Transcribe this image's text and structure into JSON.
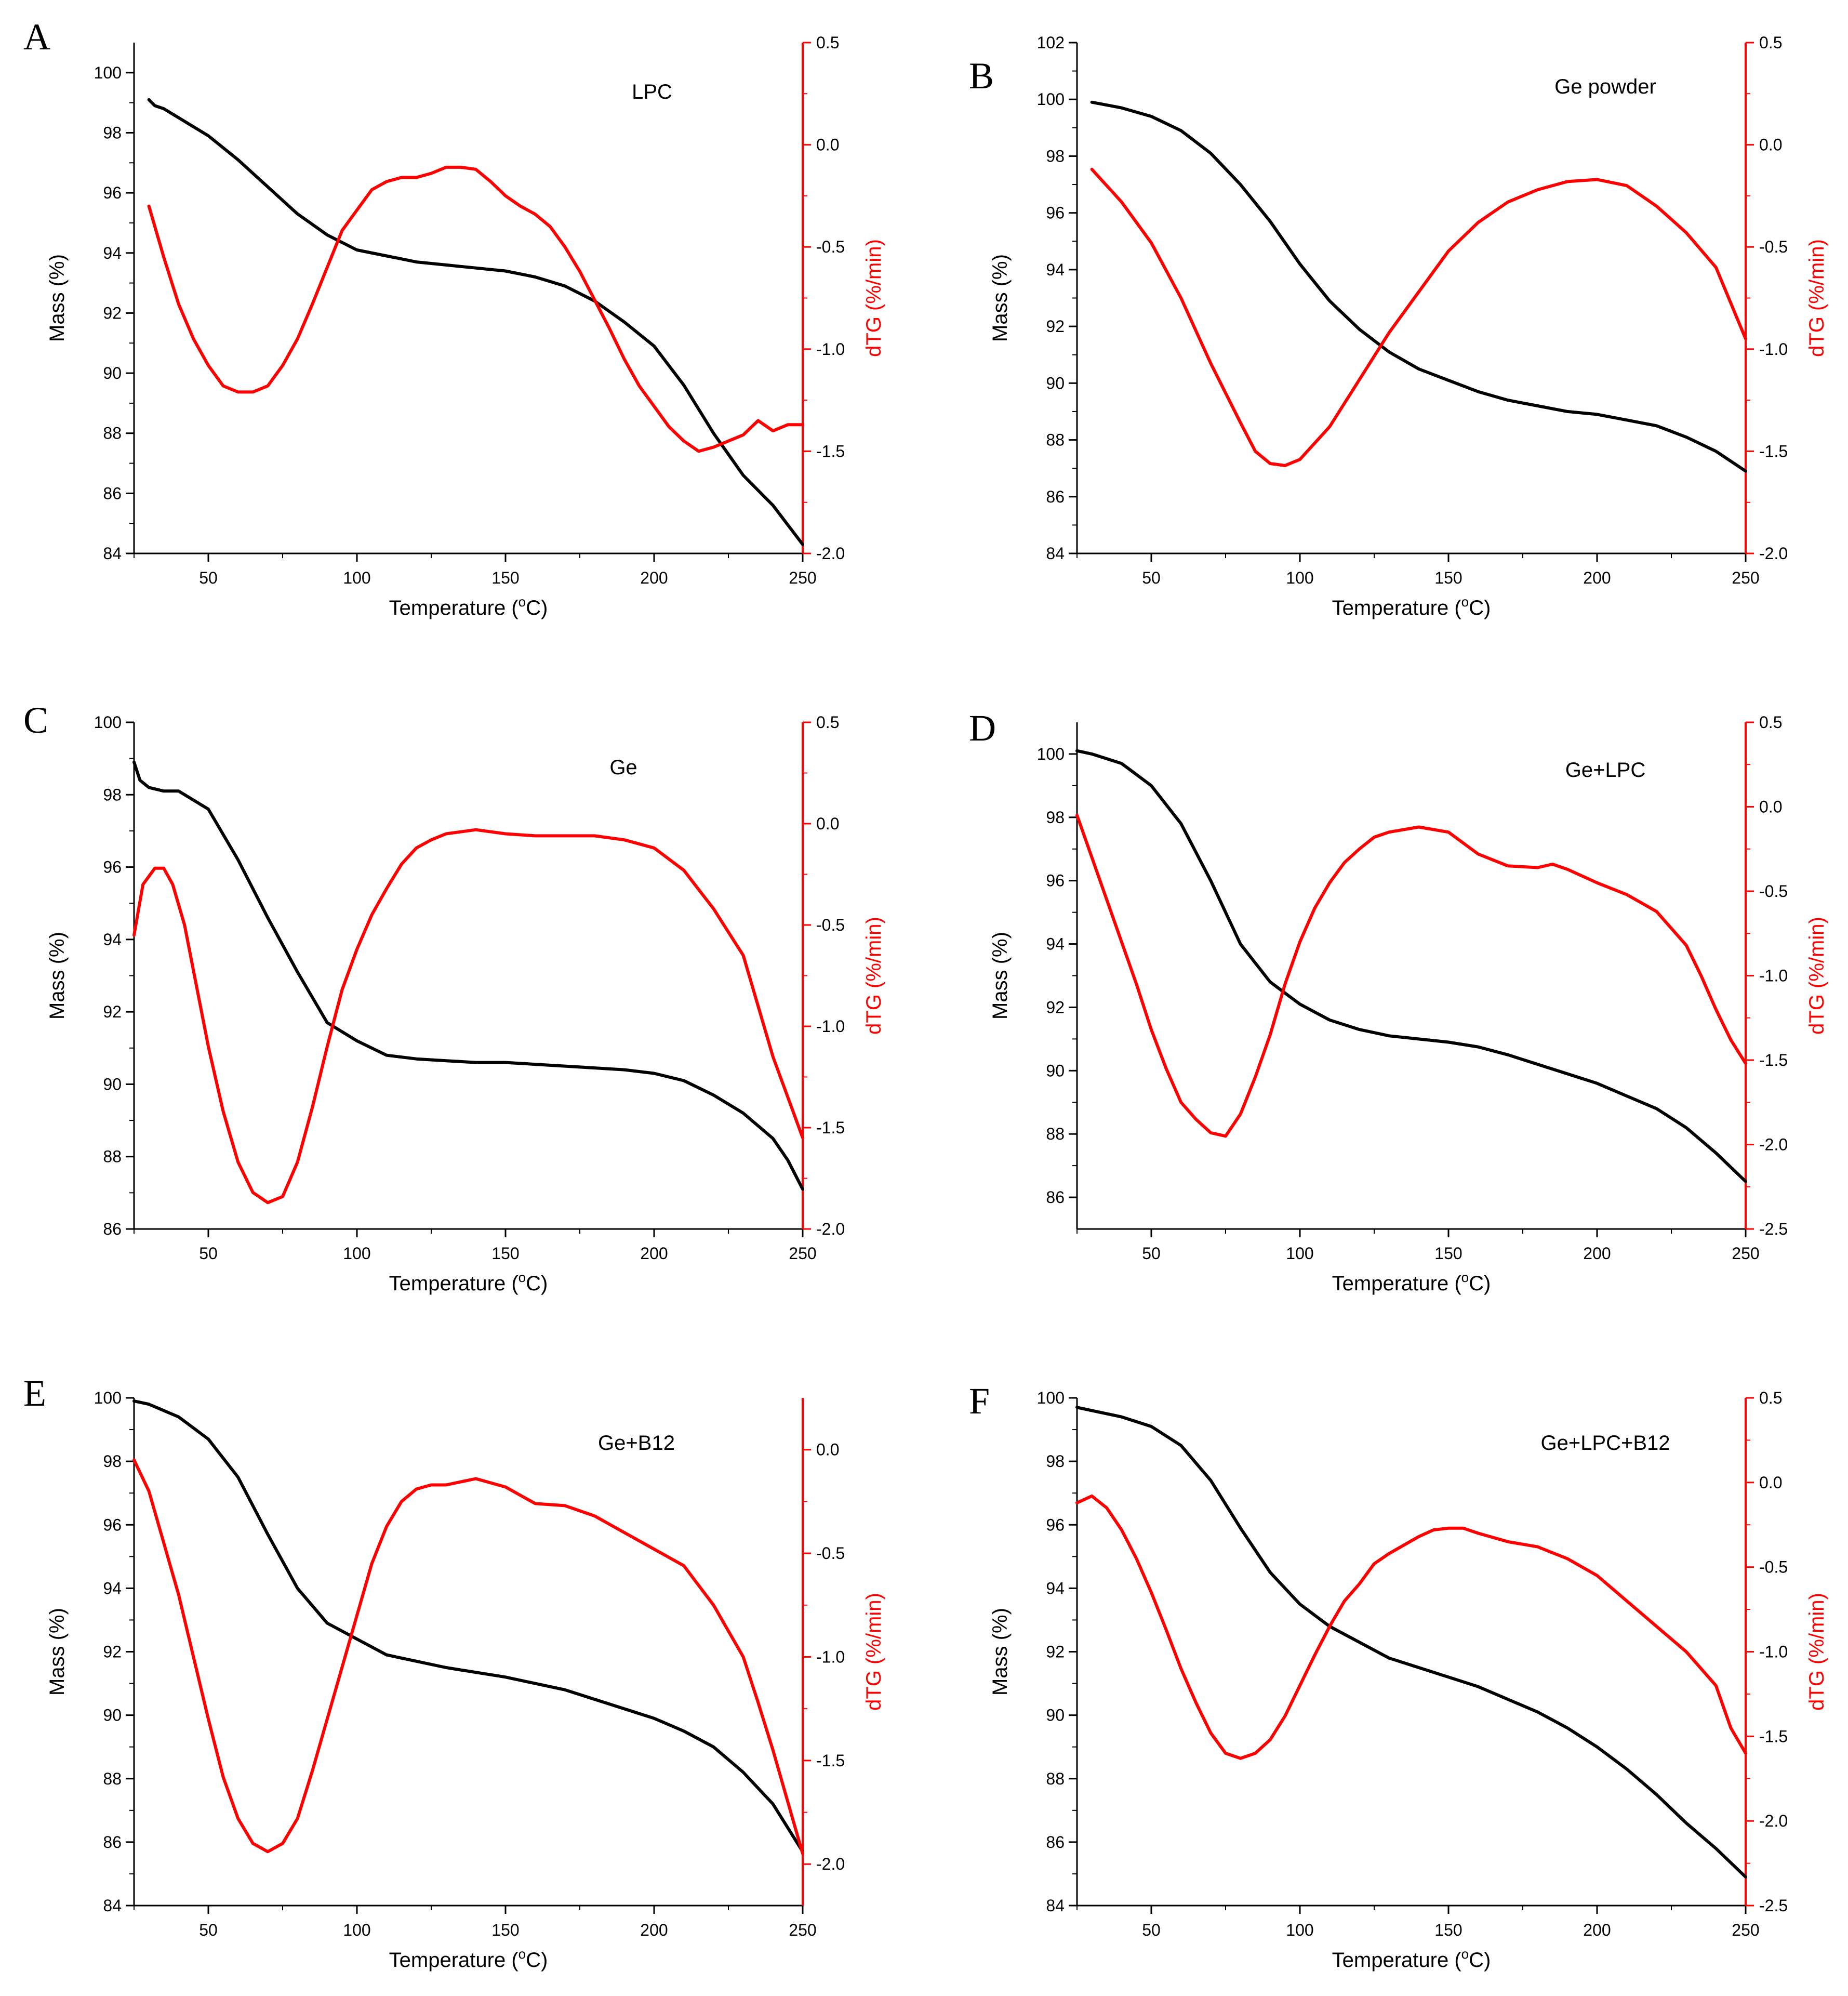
{
  "colors": {
    "mass": "#000000",
    "dtg": "#ff0000"
  },
  "chart_data": [
    {
      "panel": "A",
      "type": "line",
      "title": "LPC",
      "xlabel": "Temperature (",
      "xlabel_unit": "C)",
      "xlabel_sup": "o",
      "ylabel": "Mass (%)",
      "y2label": "dTG (%/min)",
      "xlim": [
        25,
        250
      ],
      "ylim": [
        84,
        101
      ],
      "y2lim": [
        -2.0,
        0.5
      ],
      "xticks": [
        50,
        100,
        150,
        200,
        250
      ],
      "yticks": [
        84,
        86,
        88,
        90,
        92,
        94,
        96,
        98,
        100
      ],
      "y2ticks": [
        -2.0,
        -1.5,
        -1.0,
        -0.5,
        0.0,
        0.5
      ],
      "series": [
        {
          "name": "Mass",
          "axis": "left",
          "x": [
            30,
            32,
            35,
            40,
            50,
            60,
            70,
            80,
            90,
            100,
            110,
            120,
            130,
            140,
            150,
            160,
            170,
            180,
            190,
            200,
            210,
            220,
            230,
            240,
            250
          ],
          "y": [
            99.1,
            98.9,
            98.8,
            98.5,
            97.9,
            97.1,
            96.2,
            95.3,
            94.6,
            94.1,
            93.9,
            93.7,
            93.6,
            93.5,
            93.4,
            93.2,
            92.9,
            92.4,
            91.7,
            90.9,
            89.6,
            88.0,
            86.6,
            85.6,
            84.3
          ]
        },
        {
          "name": "dTG",
          "axis": "right",
          "x": [
            30,
            35,
            40,
            45,
            50,
            55,
            60,
            65,
            70,
            75,
            80,
            85,
            90,
            95,
            100,
            105,
            110,
            115,
            120,
            125,
            130,
            135,
            140,
            145,
            150,
            155,
            160,
            165,
            170,
            175,
            180,
            185,
            190,
            195,
            200,
            205,
            210,
            215,
            220,
            225,
            230,
            235,
            240,
            245,
            250
          ],
          "y": [
            -0.3,
            -0.55,
            -0.78,
            -0.95,
            -1.08,
            -1.18,
            -1.21,
            -1.21,
            -1.18,
            -1.08,
            -0.95,
            -0.78,
            -0.6,
            -0.42,
            -0.32,
            -0.22,
            -0.18,
            -0.16,
            -0.16,
            -0.14,
            -0.11,
            -0.11,
            -0.12,
            -0.18,
            -0.25,
            -0.3,
            -0.34,
            -0.4,
            -0.5,
            -0.62,
            -0.76,
            -0.9,
            -1.05,
            -1.18,
            -1.28,
            -1.38,
            -1.45,
            -1.5,
            -1.48,
            -1.45,
            -1.42,
            -1.35,
            -1.4,
            -1.37,
            -1.37
          ]
        }
      ]
    },
    {
      "panel": "B",
      "type": "line",
      "title": "Ge powder",
      "xlabel": "Temperature (",
      "xlabel_unit": "C)",
      "xlabel_sup": "o",
      "ylabel": "Mass (%)",
      "y2label": "dTG (%/min)",
      "xlim": [
        25,
        250
      ],
      "ylim": [
        84,
        102
      ],
      "y2lim": [
        -2.0,
        0.5
      ],
      "xticks": [
        50,
        100,
        150,
        200,
        250
      ],
      "yticks": [
        84,
        86,
        88,
        90,
        92,
        94,
        96,
        98,
        100,
        102
      ],
      "y2ticks": [
        -2.0,
        -1.5,
        -1.0,
        -0.5,
        0.0,
        0.5
      ],
      "series": [
        {
          "name": "Mass",
          "axis": "left",
          "x": [
            30,
            40,
            50,
            60,
            70,
            80,
            90,
            100,
            110,
            120,
            130,
            140,
            150,
            160,
            170,
            180,
            190,
            200,
            210,
            220,
            230,
            240,
            250
          ],
          "y": [
            99.9,
            99.7,
            99.4,
            98.9,
            98.1,
            97.0,
            95.7,
            94.2,
            92.9,
            91.9,
            91.1,
            90.5,
            90.1,
            89.7,
            89.4,
            89.2,
            89.0,
            88.9,
            88.7,
            88.5,
            88.1,
            87.6,
            86.9
          ]
        },
        {
          "name": "dTG",
          "axis": "right",
          "x": [
            30,
            40,
            50,
            60,
            70,
            80,
            85,
            90,
            95,
            100,
            110,
            120,
            130,
            140,
            150,
            160,
            170,
            180,
            190,
            200,
            210,
            220,
            230,
            240,
            250
          ],
          "y": [
            -0.12,
            -0.28,
            -0.48,
            -0.75,
            -1.07,
            -1.36,
            -1.5,
            -1.56,
            -1.57,
            -1.54,
            -1.38,
            -1.15,
            -0.92,
            -0.72,
            -0.52,
            -0.38,
            -0.28,
            -0.22,
            -0.18,
            -0.17,
            -0.2,
            -0.3,
            -0.43,
            -0.6,
            -0.95
          ]
        }
      ]
    },
    {
      "panel": "C",
      "type": "line",
      "title": "Ge",
      "xlabel": "Temperature (",
      "xlabel_unit": "C)",
      "xlabel_sup": "o",
      "ylabel": "Mass (%)",
      "y2label": "dTG (%/min)",
      "xlim": [
        25,
        250
      ],
      "ylim": [
        86,
        100
      ],
      "y2lim": [
        -2.0,
        0.5
      ],
      "xticks": [
        50,
        100,
        150,
        200,
        250
      ],
      "yticks": [
        86,
        88,
        90,
        92,
        94,
        96,
        98,
        100
      ],
      "y2ticks": [
        -2.0,
        -1.5,
        -1.0,
        -0.5,
        0.0,
        0.5
      ],
      "series": [
        {
          "name": "Mass",
          "axis": "left",
          "x": [
            25,
            27,
            30,
            35,
            40,
            50,
            60,
            70,
            80,
            90,
            100,
            110,
            120,
            130,
            140,
            150,
            160,
            170,
            180,
            190,
            200,
            210,
            220,
            230,
            240,
            245,
            250
          ],
          "y": [
            98.9,
            98.4,
            98.2,
            98.1,
            98.1,
            97.6,
            96.2,
            94.6,
            93.1,
            91.7,
            91.2,
            90.8,
            90.7,
            90.65,
            90.6,
            90.6,
            90.55,
            90.5,
            90.45,
            90.4,
            90.3,
            90.1,
            89.7,
            89.2,
            88.5,
            87.9,
            87.1
          ]
        },
        {
          "name": "dTG",
          "axis": "right",
          "x": [
            25,
            28,
            32,
            35,
            38,
            42,
            46,
            50,
            55,
            60,
            65,
            70,
            75,
            80,
            85,
            90,
            95,
            100,
            105,
            110,
            115,
            120,
            125,
            130,
            140,
            150,
            160,
            170,
            180,
            190,
            200,
            210,
            220,
            230,
            235,
            240,
            245,
            250
          ],
          "y": [
            -0.55,
            -0.3,
            -0.22,
            -0.22,
            -0.3,
            -0.5,
            -0.8,
            -1.1,
            -1.42,
            -1.67,
            -1.82,
            -1.87,
            -1.84,
            -1.67,
            -1.4,
            -1.1,
            -0.82,
            -0.62,
            -0.45,
            -0.32,
            -0.2,
            -0.12,
            -0.08,
            -0.05,
            -0.03,
            -0.05,
            -0.06,
            -0.06,
            -0.06,
            -0.08,
            -0.12,
            -0.23,
            -0.42,
            -0.65,
            -0.9,
            -1.15,
            -1.35,
            -1.55
          ]
        }
      ]
    },
    {
      "panel": "D",
      "type": "line",
      "title": "Ge+LPC",
      "xlabel": "Temperature (",
      "xlabel_unit": "C)",
      "xlabel_sup": "o",
      "ylabel": "Mass (%)",
      "y2label": "dTG (%/min)",
      "xlim": [
        25,
        250
      ],
      "ylim": [
        85,
        101
      ],
      "y2lim": [
        -2.5,
        0.5
      ],
      "xticks": [
        50,
        100,
        150,
        200,
        250
      ],
      "yticks": [
        86,
        88,
        90,
        92,
        94,
        96,
        98,
        100
      ],
      "y2ticks": [
        -2.5,
        -2.0,
        -1.5,
        -1.0,
        -0.5,
        0.0,
        0.5
      ],
      "series": [
        {
          "name": "Mass",
          "axis": "left",
          "x": [
            25,
            30,
            40,
            50,
            60,
            70,
            80,
            90,
            100,
            110,
            120,
            130,
            140,
            150,
            160,
            170,
            180,
            190,
            200,
            210,
            220,
            230,
            240,
            250
          ],
          "y": [
            100.1,
            100.0,
            99.7,
            99.0,
            97.8,
            96.0,
            94.0,
            92.8,
            92.1,
            91.6,
            91.3,
            91.1,
            91.0,
            90.9,
            90.75,
            90.5,
            90.2,
            89.9,
            89.6,
            89.2,
            88.8,
            88.2,
            87.4,
            86.5
          ]
        },
        {
          "name": "dTG",
          "axis": "right",
          "x": [
            25,
            30,
            35,
            40,
            45,
            50,
            55,
            60,
            65,
            70,
            75,
            80,
            85,
            90,
            95,
            100,
            105,
            110,
            115,
            120,
            125,
            130,
            140,
            150,
            160,
            170,
            180,
            185,
            190,
            200,
            210,
            220,
            230,
            235,
            240,
            245,
            250
          ],
          "y": [
            -0.05,
            -0.3,
            -0.55,
            -0.8,
            -1.05,
            -1.32,
            -1.55,
            -1.75,
            -1.85,
            -1.93,
            -1.95,
            -1.82,
            -1.6,
            -1.35,
            -1.05,
            -0.8,
            -0.6,
            -0.45,
            -0.33,
            -0.25,
            -0.18,
            -0.15,
            -0.12,
            -0.15,
            -0.28,
            -0.35,
            -0.36,
            -0.34,
            -0.37,
            -0.45,
            -0.52,
            -0.62,
            -0.82,
            -1.0,
            -1.2,
            -1.38,
            -1.52
          ]
        }
      ]
    },
    {
      "panel": "E",
      "type": "line",
      "title": "Ge+B12",
      "xlabel": "Temperature (",
      "xlabel_unit": "C)",
      "xlabel_sup": "o",
      "ylabel": "Mass (%)",
      "y2label": "dTG (%/min)",
      "xlim": [
        25,
        250
      ],
      "ylim": [
        84,
        100
      ],
      "y2lim": [
        -2.2,
        0.25
      ],
      "xticks": [
        50,
        100,
        150,
        200,
        250
      ],
      "yticks": [
        84,
        86,
        88,
        90,
        92,
        94,
        96,
        98,
        100
      ],
      "y2ticks": [
        -2.0,
        -1.5,
        -1.0,
        -0.5,
        0.0
      ],
      "series": [
        {
          "name": "Mass",
          "axis": "left",
          "x": [
            25,
            30,
            40,
            50,
            60,
            70,
            80,
            90,
            100,
            110,
            120,
            130,
            140,
            150,
            160,
            170,
            180,
            190,
            200,
            210,
            220,
            230,
            240,
            250
          ],
          "y": [
            99.9,
            99.8,
            99.4,
            98.7,
            97.5,
            95.7,
            94.0,
            92.9,
            92.4,
            91.9,
            91.7,
            91.5,
            91.35,
            91.2,
            91.0,
            90.8,
            90.5,
            90.2,
            89.9,
            89.5,
            89.0,
            88.2,
            87.2,
            85.7
          ]
        },
        {
          "name": "dTG",
          "axis": "right",
          "x": [
            25,
            30,
            35,
            40,
            45,
            50,
            55,
            60,
            65,
            70,
            75,
            80,
            85,
            90,
            95,
            100,
            105,
            110,
            115,
            120,
            125,
            130,
            140,
            150,
            160,
            170,
            180,
            190,
            200,
            210,
            220,
            230,
            235,
            240,
            245,
            250
          ],
          "y": [
            -0.05,
            -0.2,
            -0.45,
            -0.7,
            -1.0,
            -1.3,
            -1.58,
            -1.78,
            -1.9,
            -1.94,
            -1.9,
            -1.78,
            -1.55,
            -1.3,
            -1.05,
            -0.8,
            -0.55,
            -0.37,
            -0.25,
            -0.19,
            -0.17,
            -0.17,
            -0.14,
            -0.18,
            -0.26,
            -0.27,
            -0.32,
            -0.4,
            -0.48,
            -0.56,
            -0.75,
            -1.0,
            -1.22,
            -1.45,
            -1.7,
            -1.95
          ]
        }
      ]
    },
    {
      "panel": "F",
      "type": "line",
      "title": "Ge+LPC+B12",
      "xlabel": "Temperature (",
      "xlabel_unit": "C)",
      "xlabel_sup": "o",
      "ylabel": "Mass (%)",
      "y2label": "dTG (%/min)",
      "xlim": [
        25,
        250
      ],
      "ylim": [
        84,
        100
      ],
      "y2lim": [
        -2.5,
        0.5
      ],
      "xticks": [
        50,
        100,
        150,
        200,
        250
      ],
      "yticks": [
        84,
        86,
        88,
        90,
        92,
        94,
        96,
        98,
        100
      ],
      "y2ticks": [
        -2.5,
        -2.0,
        -1.5,
        -1.0,
        -0.5,
        0.0,
        0.5
      ],
      "series": [
        {
          "name": "Mass",
          "axis": "left",
          "x": [
            25,
            30,
            40,
            50,
            60,
            70,
            80,
            90,
            100,
            110,
            120,
            130,
            140,
            150,
            160,
            170,
            180,
            190,
            200,
            210,
            220,
            230,
            240,
            250
          ],
          "y": [
            99.7,
            99.6,
            99.4,
            99.1,
            98.5,
            97.4,
            95.9,
            94.5,
            93.5,
            92.8,
            92.3,
            91.8,
            91.5,
            91.2,
            90.9,
            90.5,
            90.1,
            89.6,
            89.0,
            88.3,
            87.5,
            86.6,
            85.8,
            84.9
          ]
        },
        {
          "name": "dTG",
          "axis": "right",
          "x": [
            25,
            30,
            35,
            40,
            45,
            50,
            55,
            60,
            65,
            70,
            75,
            80,
            85,
            90,
            95,
            100,
            105,
            110,
            115,
            120,
            125,
            130,
            140,
            145,
            150,
            155,
            160,
            170,
            180,
            190,
            200,
            210,
            220,
            230,
            240,
            245,
            250
          ],
          "y": [
            -0.12,
            -0.08,
            -0.15,
            -0.28,
            -0.45,
            -0.65,
            -0.87,
            -1.1,
            -1.3,
            -1.48,
            -1.6,
            -1.63,
            -1.6,
            -1.52,
            -1.38,
            -1.2,
            -1.02,
            -0.85,
            -0.7,
            -0.6,
            -0.48,
            -0.42,
            -0.32,
            -0.28,
            -0.27,
            -0.27,
            -0.3,
            -0.35,
            -0.38,
            -0.45,
            -0.55,
            -0.7,
            -0.85,
            -1.0,
            -1.2,
            -1.45,
            -1.6
          ]
        }
      ]
    }
  ]
}
